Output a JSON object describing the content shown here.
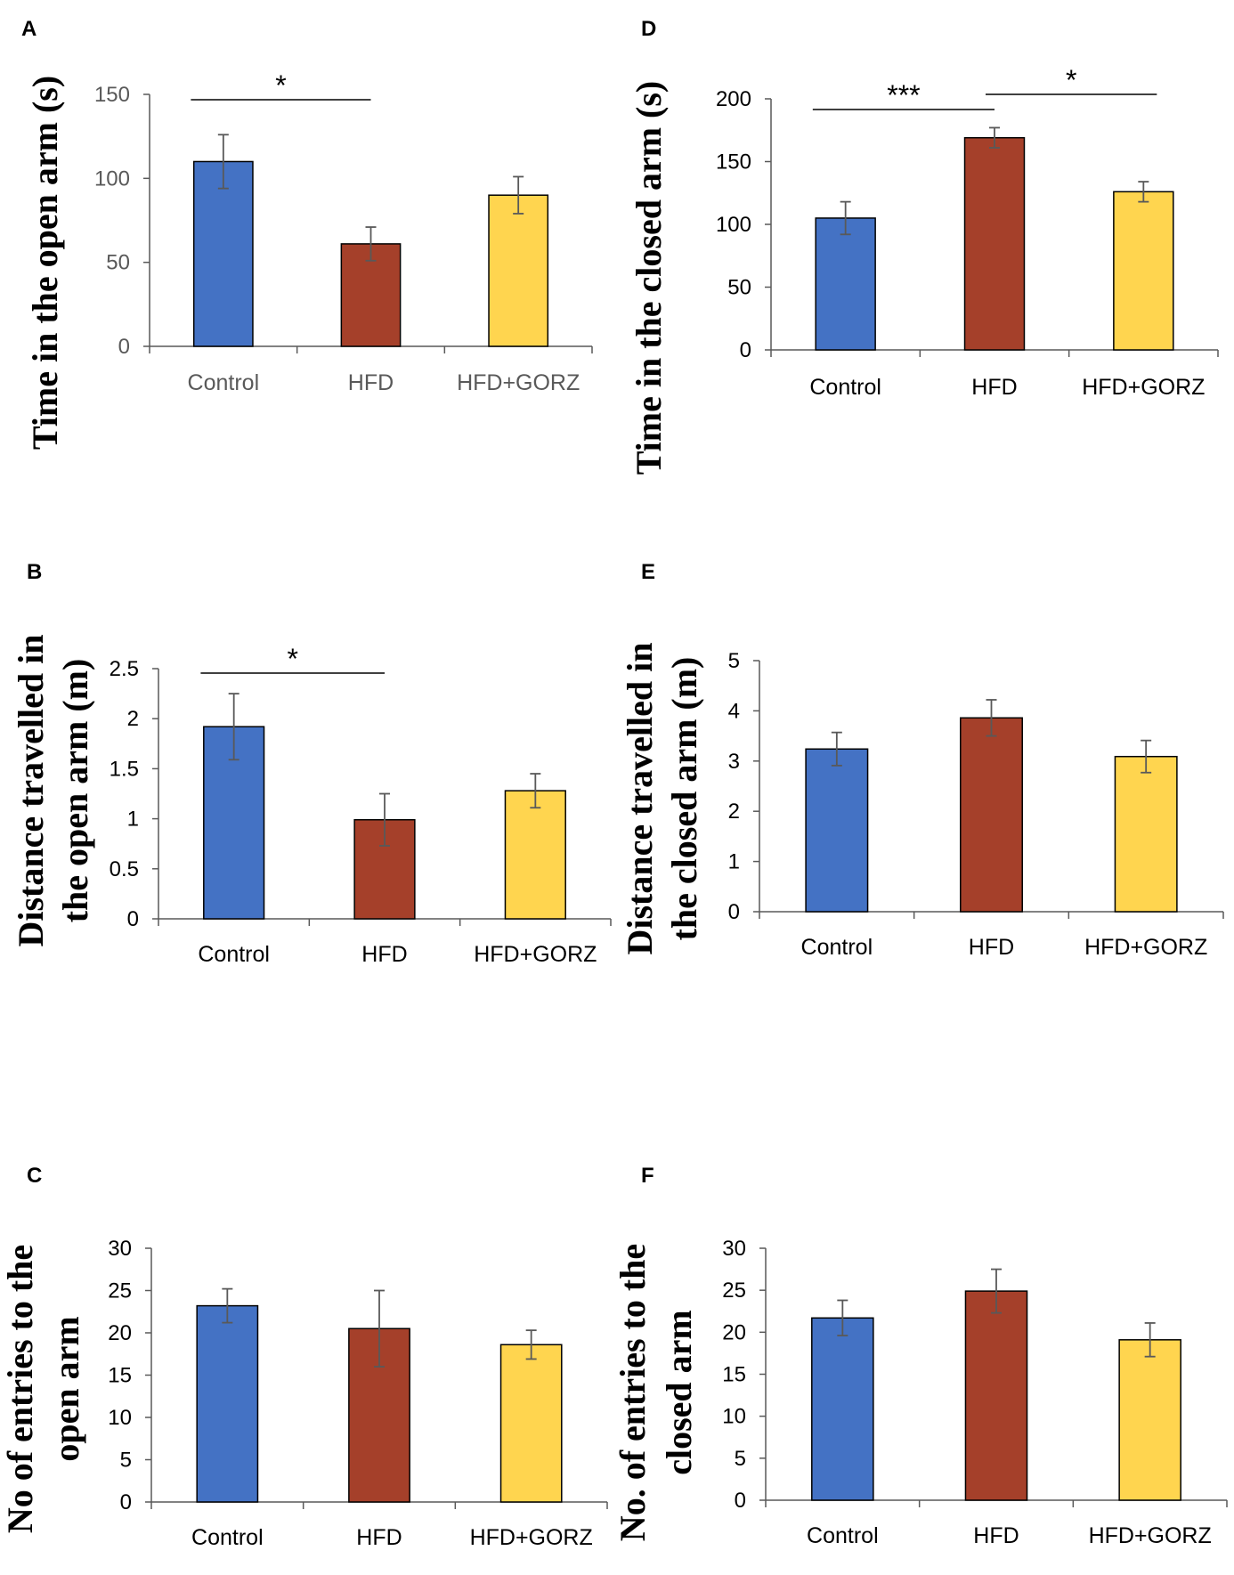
{
  "colors": {
    "control": "#4472C4",
    "hfd": "#A5402A",
    "gorz": "#FFD54F",
    "bar_stroke": "#000000",
    "axis": "#595959",
    "error": "#595959"
  },
  "chart_data": [
    {
      "panel": "A",
      "type": "bar",
      "categories": [
        "Control",
        "HFD",
        "HFD+GORZ"
      ],
      "values": [
        110,
        61,
        90
      ],
      "errors": [
        16,
        10,
        11
      ],
      "ylabel": [
        "Time in the open arm (s)"
      ],
      "ylim": [
        0,
        150
      ],
      "yticks": [
        "0",
        "50",
        "100",
        "150"
      ],
      "significance": [
        {
          "from": 0,
          "to": 1,
          "label": "*"
        }
      ]
    },
    {
      "panel": "B",
      "type": "bar",
      "categories": [
        "Control",
        "HFD",
        "HFD+GORZ"
      ],
      "values": [
        1.92,
        0.99,
        1.28
      ],
      "errors": [
        0.33,
        0.26,
        0.17
      ],
      "ylabel": [
        "Distance travelled in",
        "the open arm (m)"
      ],
      "ylim": [
        0,
        2.5
      ],
      "yticks": [
        "0",
        "0.5",
        "1",
        "1.5",
        "2",
        "2.5"
      ],
      "significance": [
        {
          "from": 0,
          "to": 1,
          "label": "*"
        }
      ]
    },
    {
      "panel": "C",
      "type": "bar",
      "categories": [
        "Control",
        "HFD",
        "HFD+GORZ"
      ],
      "values": [
        23.2,
        20.5,
        18.6
      ],
      "errors": [
        2.0,
        4.5,
        1.7
      ],
      "ylabel": [
        "No of entries to the",
        "open arm"
      ],
      "ylim": [
        0,
        30
      ],
      "yticks": [
        "0",
        "5",
        "10",
        "15",
        "20",
        "25",
        "30"
      ],
      "significance": []
    },
    {
      "panel": "D",
      "type": "bar",
      "categories": [
        "Control",
        "HFD",
        "HFD+GORZ"
      ],
      "values": [
        105,
        169,
        126
      ],
      "errors": [
        13,
        8,
        8
      ],
      "ylabel": [
        "Time in the closed arm (s)"
      ],
      "ylim": [
        0,
        200
      ],
      "yticks": [
        "0",
        "50",
        "100",
        "150",
        "200"
      ],
      "significance": [
        {
          "from": 0,
          "to": 1,
          "label": "***"
        },
        {
          "from": 1,
          "to": 2,
          "label": "*"
        }
      ]
    },
    {
      "panel": "E",
      "type": "bar",
      "categories": [
        "Control",
        "HFD",
        "HFD+GORZ"
      ],
      "values": [
        3.24,
        3.86,
        3.09
      ],
      "errors": [
        0.33,
        0.36,
        0.32
      ],
      "ylabel": [
        "Distance travelled in",
        "the closed arm (m)"
      ],
      "ylim": [
        0,
        5
      ],
      "yticks": [
        "0",
        "1",
        "2",
        "3",
        "4",
        "5"
      ],
      "significance": []
    },
    {
      "panel": "F",
      "type": "bar",
      "categories": [
        "Control",
        "HFD",
        "HFD+GORZ"
      ],
      "values": [
        21.7,
        24.9,
        19.1
      ],
      "errors": [
        2.1,
        2.6,
        2.0
      ],
      "ylabel": [
        "No. of entries to the",
        "closed arm"
      ],
      "ylim": [
        0,
        30
      ],
      "yticks": [
        "0",
        "5",
        "10",
        "15",
        "20",
        "25",
        "30"
      ],
      "significance": []
    }
  ]
}
